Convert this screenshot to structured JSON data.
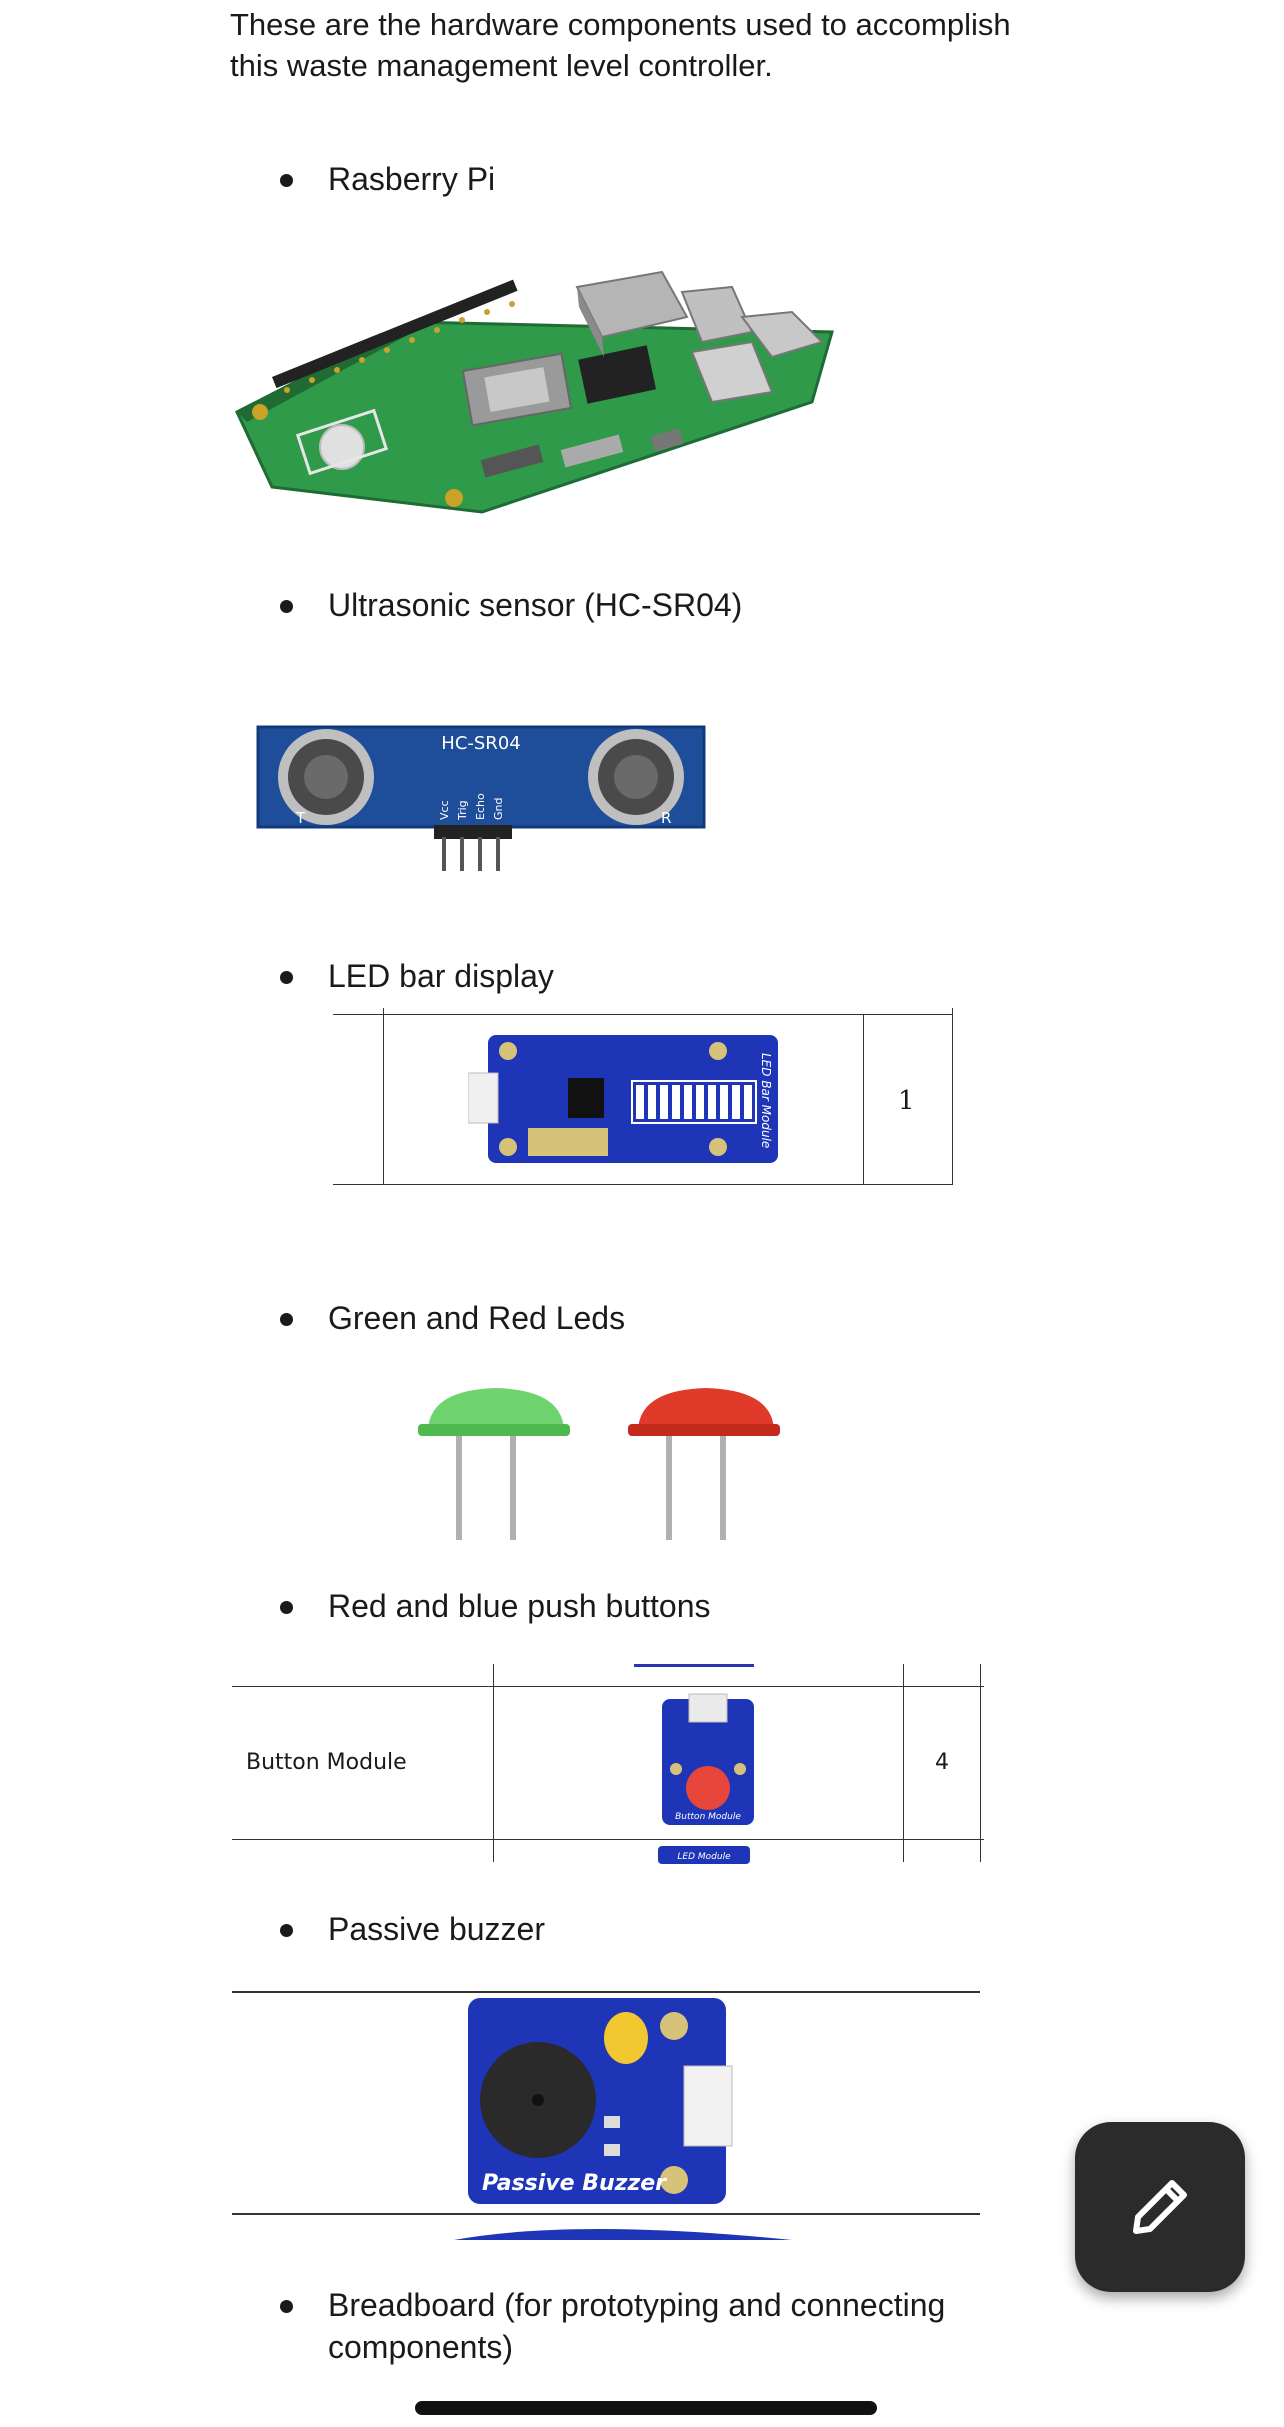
{
  "intro": "These are the hardware components used to accomplish this waste management level controller.",
  "items": [
    {
      "label": "Rasberry Pi"
    },
    {
      "label": "Ultrasonic sensor (HC-SR04)"
    },
    {
      "label": "LED bar display"
    },
    {
      "label": "Green and Red Leds"
    },
    {
      "label": "Red and blue push buttons"
    },
    {
      "label": "Passive buzzer"
    },
    {
      "label": "Breadboard (for prototyping and connecting components)"
    }
  ],
  "hc_sr04": {
    "model": "HC-SR04",
    "pins": [
      "Vcc",
      "Trig",
      "Echo",
      "Gnd"
    ],
    "t": "T",
    "r": "R"
  },
  "led_bar": {
    "module_text": "LED Bar Module",
    "quantity": "1"
  },
  "button_table": {
    "name": "Button Module",
    "module_text": "Button Module",
    "next_module_text": "LED Module",
    "quantity": "4"
  },
  "buzzer": {
    "module_text": "Passive Buzzer"
  },
  "fab": {
    "icon": "pencil-icon"
  }
}
